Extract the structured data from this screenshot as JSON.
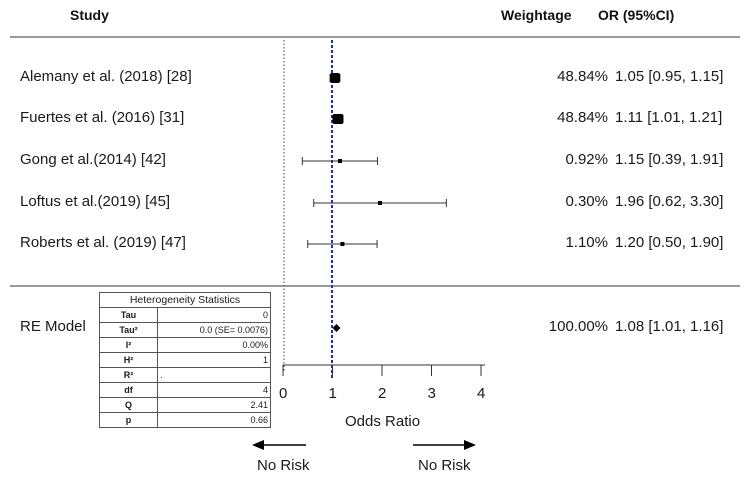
{
  "chart_data": {
    "type": "forest",
    "headers": {
      "study": "Study",
      "weight": "Weightage",
      "or": "OR (95%CI)"
    },
    "studies": [
      {
        "label": "Alemany et al. (2018)",
        "ref": "[28]",
        "or": 1.05,
        "lo": 0.95,
        "hi": 1.15,
        "weight": "48.84%",
        "ci_text": "1.05 [0.95, 1.15]"
      },
      {
        "label": "Fuertes et al. (2016)",
        "ref": "[31]",
        "or": 1.11,
        "lo": 1.01,
        "hi": 1.21,
        "weight": "48.84%",
        "ci_text": "1.11 [1.01, 1.21]"
      },
      {
        "label": "Gong et al.(2014)",
        "ref": "[42]",
        "or": 1.15,
        "lo": 0.39,
        "hi": 1.91,
        "weight": "0.92%",
        "ci_text": "1.15 [0.39, 1.91]"
      },
      {
        "label": "Loftus et al.(2019)",
        "ref": "[45]",
        "or": 1.96,
        "lo": 0.62,
        "hi": 3.3,
        "weight": "0.30%",
        "ci_text": "1.96 [0.62, 3.30]"
      },
      {
        "label": "Roberts et al. (2019)",
        "ref": "[47]",
        "or": 1.2,
        "lo": 0.5,
        "hi": 1.9,
        "weight": "1.10%",
        "ci_text": "1.20 [0.50, 1.90]"
      }
    ],
    "summary": {
      "label": "RE Model",
      "or": 1.08,
      "lo": 1.01,
      "hi": 1.16,
      "weight": "100.00%",
      "ci_text": "1.08 [1.01, 1.16]"
    },
    "x_axis": {
      "label": "Odds Ratio",
      "ticks": [
        0,
        1,
        2,
        3,
        4
      ],
      "range": [
        0,
        4
      ],
      "null_line": 1
    },
    "direction_labels": {
      "left": "No Risk",
      "right": "No Risk"
    },
    "heterogeneity": {
      "title": "Heterogeneity Statistics",
      "rows": [
        {
          "key": "Tau",
          "value": "0"
        },
        {
          "key": "Tau²",
          "value": "0.0 (SE= 0.0076)"
        },
        {
          "key": "I²",
          "value": "0.00%"
        },
        {
          "key": "H²",
          "value": "1"
        },
        {
          "key": "R²",
          "value": "."
        },
        {
          "key": "df",
          "value": "4"
        },
        {
          "key": "Q",
          "value": "2.41"
        },
        {
          "key": "p",
          "value": "0.66"
        }
      ]
    }
  }
}
